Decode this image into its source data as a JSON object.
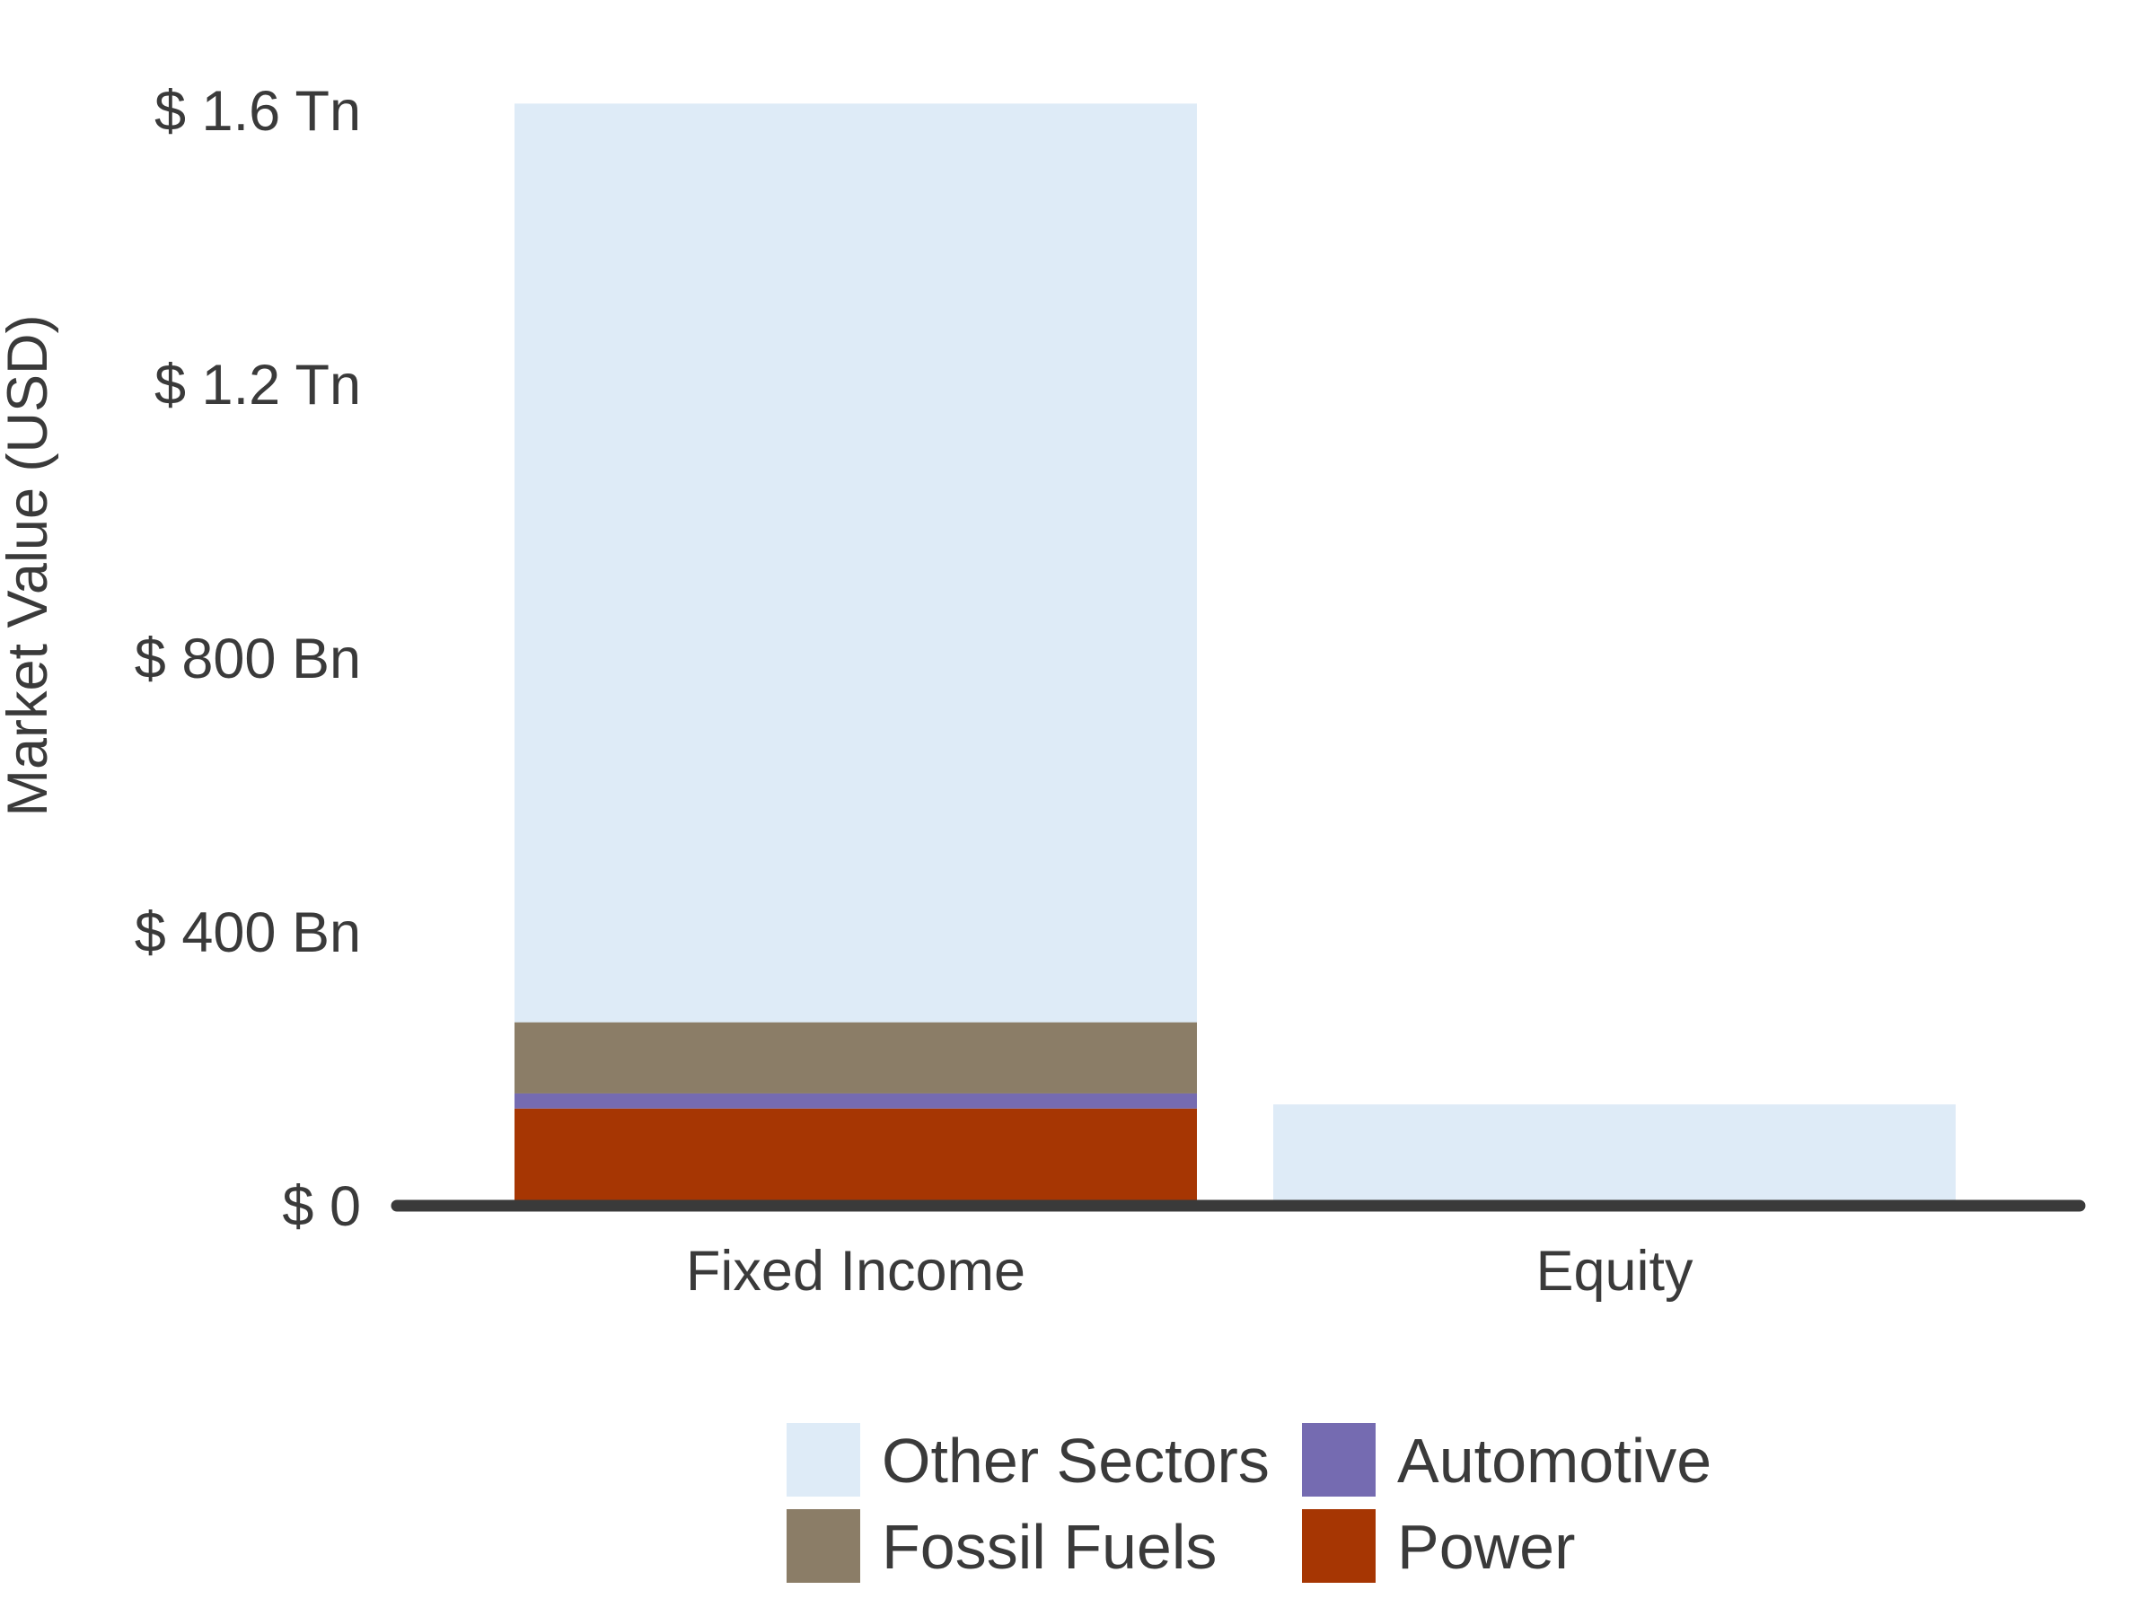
{
  "chart_data": {
    "type": "bar",
    "stacked": true,
    "title": "",
    "xlabel": "",
    "ylabel": "Market Value (USD)",
    "categories": [
      "Fixed Income",
      "Equity"
    ],
    "ylim": [
      0,
      1600
    ],
    "y_unit": "USD Bn",
    "y_ticks": [
      {
        "value": 0,
        "label": "$ 0"
      },
      {
        "value": 400,
        "label": "$ 400 Bn"
      },
      {
        "value": 800,
        "label": "$ 800 Bn"
      },
      {
        "value": 1200,
        "label": "$ 1.2 Tn"
      },
      {
        "value": 1600,
        "label": "$ 1.6 Tn"
      }
    ],
    "series": [
      {
        "name": "Power",
        "color": "#a63603",
        "values": [
          142,
          0
        ]
      },
      {
        "name": "Automotive",
        "color": "#756bb1",
        "values": [
          22,
          0
        ]
      },
      {
        "name": "Fossil Fuels",
        "color": "#8b7d67",
        "values": [
          104,
          0
        ]
      },
      {
        "name": "Other Sectors",
        "color": "#deebf7",
        "values": [
          1342,
          148
        ]
      }
    ],
    "legend": {
      "position": "bottom",
      "order": [
        "Other Sectors",
        "Automotive",
        "Fossil Fuels",
        "Power"
      ]
    },
    "grid": false
  }
}
